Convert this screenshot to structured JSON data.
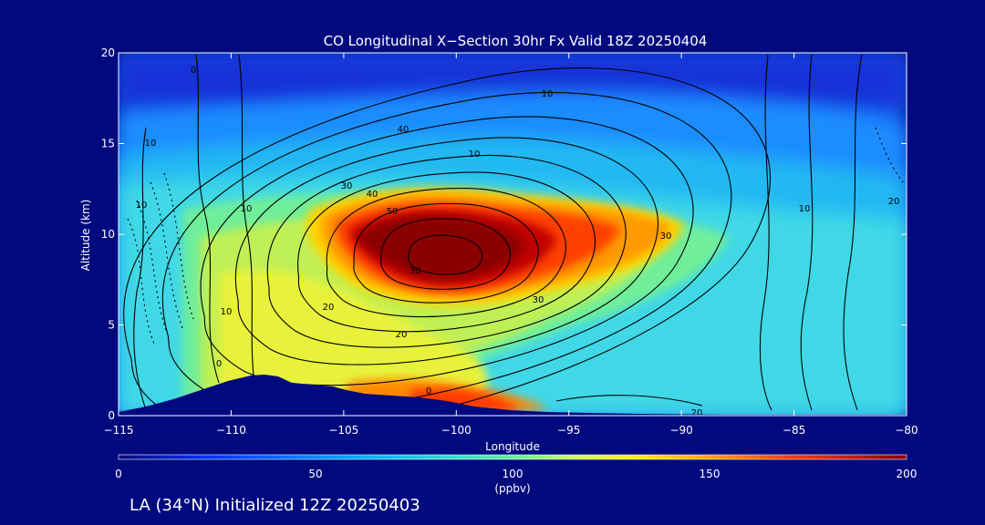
{
  "chart_data": {
    "type": "contour-heatmap",
    "title": "CO Longitudinal X−Section 30hr  Fx Valid 18Z 20250404",
    "xlabel": "Longitude",
    "ylabel": "Altitude (km)",
    "xlim": [
      -115,
      -80
    ],
    "ylim": [
      0,
      20
    ],
    "xticks": [
      "−115",
      "−110",
      "−105",
      "−100",
      "−95",
      "−90",
      "−85",
      "−80"
    ],
    "yticks": [
      "0",
      "5",
      "10",
      "15",
      "20"
    ],
    "colorbar": {
      "min": 0,
      "max": 200,
      "unit": "(ppbv)",
      "ticks": [
        "0",
        "50",
        "100",
        "150",
        "200"
      ]
    },
    "plume": {
      "center_lon": -100.5,
      "center_alt": 8.8,
      "peak_value": 200
    },
    "contour_labels": [
      "0",
      "0",
      "0",
      "10",
      "10",
      "10",
      "10",
      "10",
      "10",
      "20",
      "20",
      "20",
      "30",
      "30",
      "30",
      "40",
      "40",
      "50",
      "10",
      "20",
      "30"
    ],
    "footer": "LA (34°N) Initialized 12Z 20250403"
  }
}
